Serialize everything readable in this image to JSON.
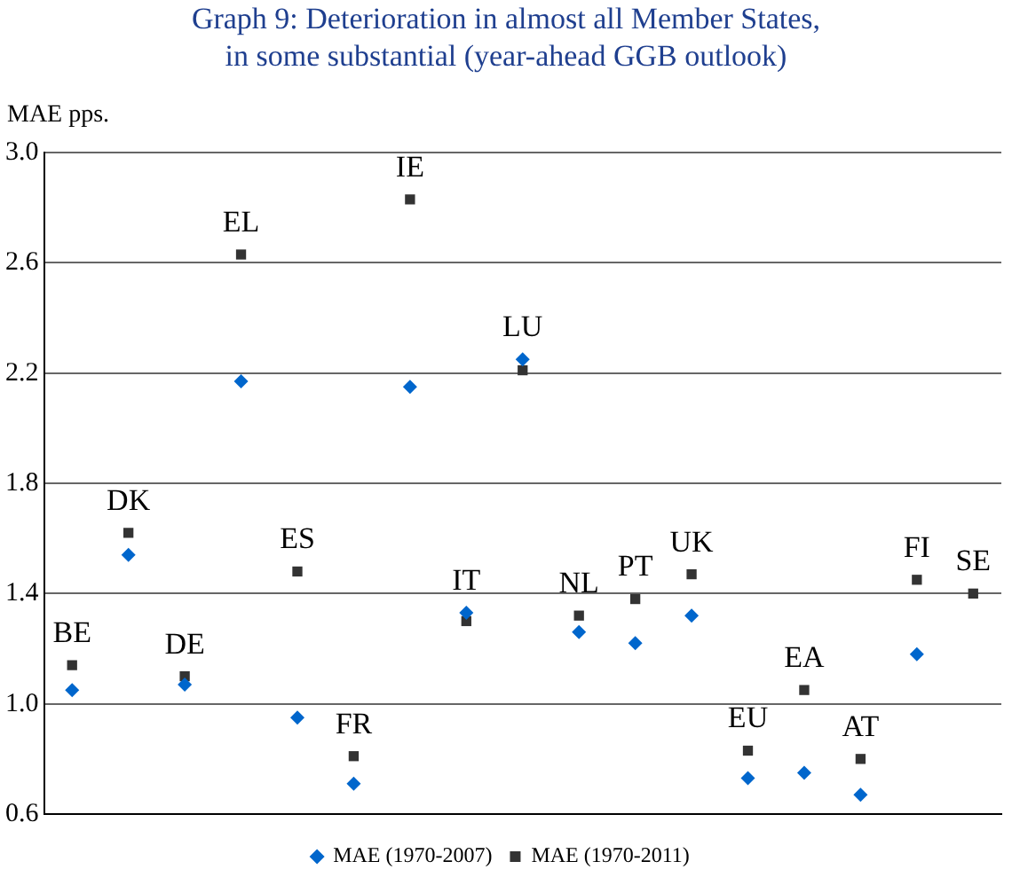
{
  "chart_data": {
    "type": "scatter",
    "title": "Graph 9: Deterioration in almost all Member States, in some substantial (year-ahead GGB outlook)",
    "ylabel": "MAE pps.",
    "categories": [
      "BE",
      "DK",
      "DE",
      "EL",
      "ES",
      "FR",
      "IE",
      "IT",
      "LU",
      "NL",
      "PT",
      "UK",
      "EU",
      "EA",
      "AT",
      "FI",
      "SE"
    ],
    "series": [
      {
        "name": "MAE (1970-2007)",
        "color": "#0066cc",
        "marker": "diamond",
        "values": [
          1.05,
          1.54,
          1.07,
          2.17,
          0.95,
          0.71,
          2.15,
          1.33,
          2.25,
          1.26,
          1.22,
          1.32,
          0.73,
          0.75,
          0.67,
          1.18,
          null
        ]
      },
      {
        "name": "MAE (1970-2011)",
        "color": "#333333",
        "marker": "square",
        "values": [
          1.14,
          1.62,
          1.1,
          2.63,
          1.48,
          0.81,
          2.83,
          1.3,
          2.21,
          1.32,
          1.38,
          1.47,
          0.83,
          1.05,
          0.8,
          1.45,
          1.4
        ]
      }
    ],
    "ylim": [
      0.6,
      3.0
    ],
    "yticks": [
      0.6,
      {
        "value": 1,
        "label": "1.0"
      },
      1.4,
      1.8,
      2.2,
      2.6,
      {
        "value": 3,
        "label": "3.0"
      }
    ],
    "grid": "y",
    "legend": "bottom"
  }
}
